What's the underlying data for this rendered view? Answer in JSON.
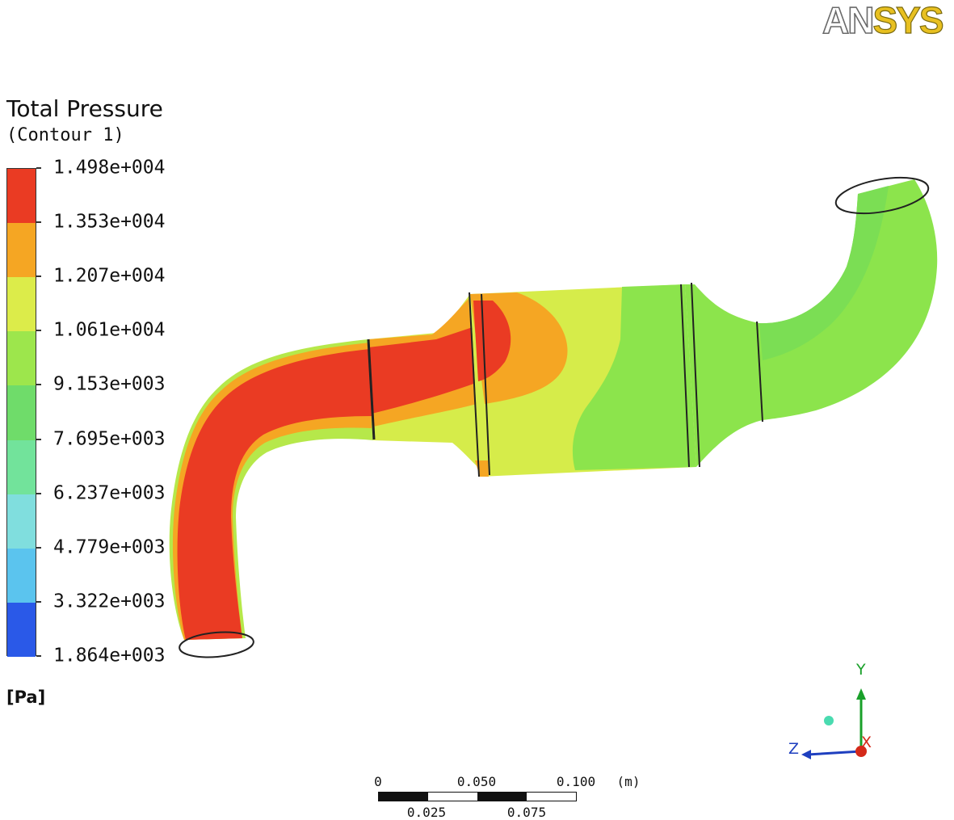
{
  "brand": {
    "logo_part1": "AN",
    "logo_part2": "SYS"
  },
  "legend": {
    "title": "Total Pressure",
    "subtitle": "(Contour 1)",
    "unit": "[Pa]",
    "levels": [
      "1.498e+004",
      "1.353e+004",
      "1.207e+004",
      "1.061e+004",
      "9.153e+003",
      "7.695e+003",
      "6.237e+003",
      "4.779e+003",
      "3.322e+003",
      "1.864e+003"
    ],
    "band_colors": [
      "#ea3b23",
      "#f5a623",
      "#dcec4a",
      "#9de64c",
      "#5fd84a",
      "#6fdc6a",
      "#72e39b",
      "#80dede",
      "#5bc4ee",
      "#2a59e8"
    ]
  },
  "scale_bar": {
    "top_labels": [
      "0",
      "0.050",
      "0.100"
    ],
    "bottom_labels": [
      "0.025",
      "0.075"
    ],
    "unit": "(m)"
  },
  "axes_triad": {
    "y": "Y",
    "z": "Z",
    "x": "X"
  },
  "colors": {
    "red": "#ea3b23",
    "orange": "#f5a623",
    "yellow": "#d6ec4a",
    "yellow_green": "#b6e84a",
    "green": "#8ce44c",
    "light_green": "#7bde54"
  }
}
